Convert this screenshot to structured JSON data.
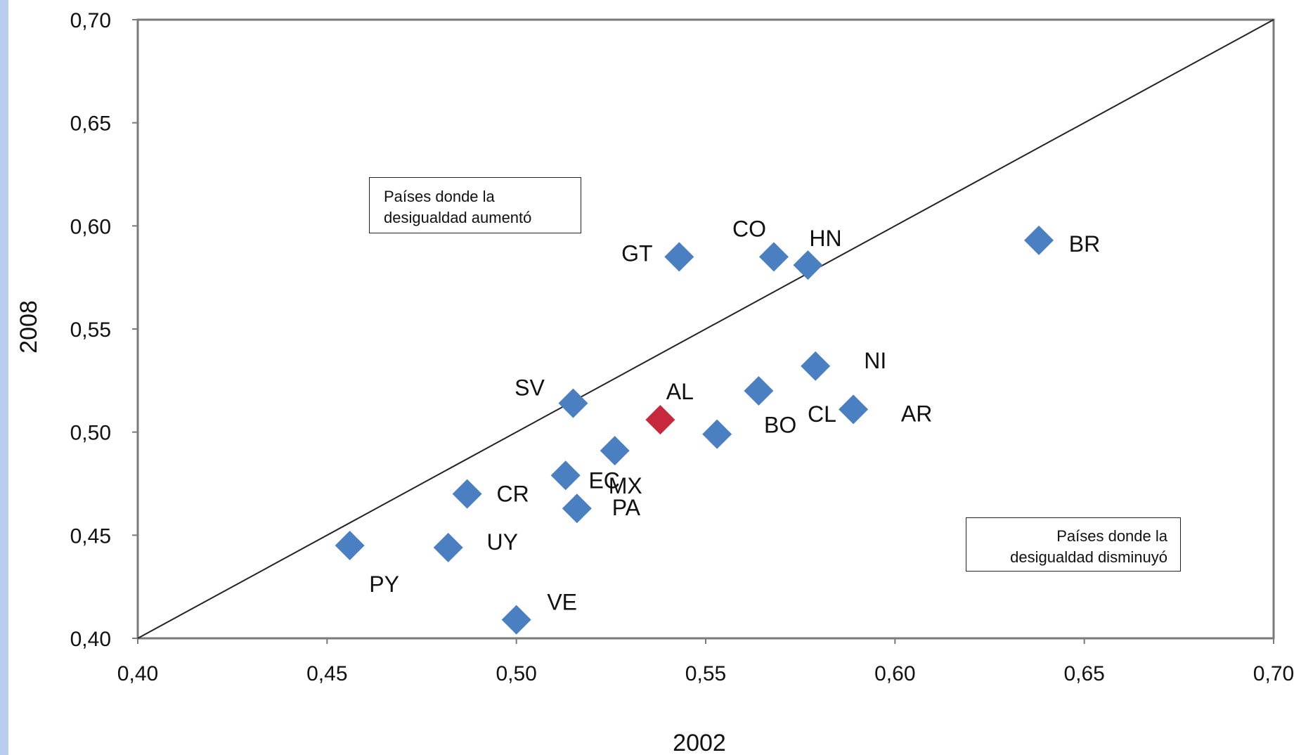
{
  "chart_data": {
    "type": "scatter",
    "xlabel": "2002",
    "ylabel": "2008",
    "xlim": [
      0.4,
      0.7
    ],
    "ylim": [
      0.4,
      0.7
    ],
    "x_ticks": [
      "0,40",
      "0,45",
      "0,50",
      "0,55",
      "0,60",
      "0,65",
      "0,70"
    ],
    "y_ticks": [
      "0,40",
      "0,45",
      "0,50",
      "0,55",
      "0,60",
      "0,65",
      "0,70"
    ],
    "reference_line": [
      [
        0.4,
        0.4
      ],
      [
        0.7,
        0.7
      ]
    ],
    "grid": false,
    "points": [
      {
        "label": "GT",
        "x": 0.543,
        "y": 0.585,
        "color": "#4a7fc1"
      },
      {
        "label": "CO",
        "x": 0.568,
        "y": 0.585,
        "color": "#4a7fc1"
      },
      {
        "label": "HN",
        "x": 0.577,
        "y": 0.581,
        "color": "#4a7fc1"
      },
      {
        "label": "BR",
        "x": 0.638,
        "y": 0.593,
        "color": "#4a7fc1"
      },
      {
        "label": "NI",
        "x": 0.579,
        "y": 0.532,
        "color": "#4a7fc1"
      },
      {
        "label": "SV",
        "x": 0.515,
        "y": 0.514,
        "color": "#4a7fc1"
      },
      {
        "label": "AL",
        "x": 0.538,
        "y": 0.506,
        "color": "#c8283c"
      },
      {
        "label": "CL",
        "x": 0.564,
        "y": 0.52,
        "color": "#4a7fc1"
      },
      {
        "label": "AR",
        "x": 0.589,
        "y": 0.511,
        "color": "#4a7fc1"
      },
      {
        "label": "BO",
        "x": 0.553,
        "y": 0.499,
        "color": "#4a7fc1"
      },
      {
        "label": "MX",
        "x": 0.526,
        "y": 0.491,
        "color": "#4a7fc1"
      },
      {
        "label": "EC",
        "x": 0.513,
        "y": 0.479,
        "color": "#4a7fc1"
      },
      {
        "label": "CR",
        "x": 0.487,
        "y": 0.47,
        "color": "#4a7fc1"
      },
      {
        "label": "PA",
        "x": 0.516,
        "y": 0.463,
        "color": "#4a7fc1"
      },
      {
        "label": "UY",
        "x": 0.482,
        "y": 0.444,
        "color": "#4a7fc1"
      },
      {
        "label": "PY",
        "x": 0.456,
        "y": 0.445,
        "color": "#4a7fc1"
      },
      {
        "label": "VE",
        "x": 0.5,
        "y": 0.409,
        "color": "#4a7fc1"
      }
    ],
    "annotations": [
      {
        "line1": "Países donde la",
        "line2": "desigualdad aumentó"
      },
      {
        "line1": "Países donde la",
        "line2": "desigualdad disminuyó"
      }
    ]
  }
}
